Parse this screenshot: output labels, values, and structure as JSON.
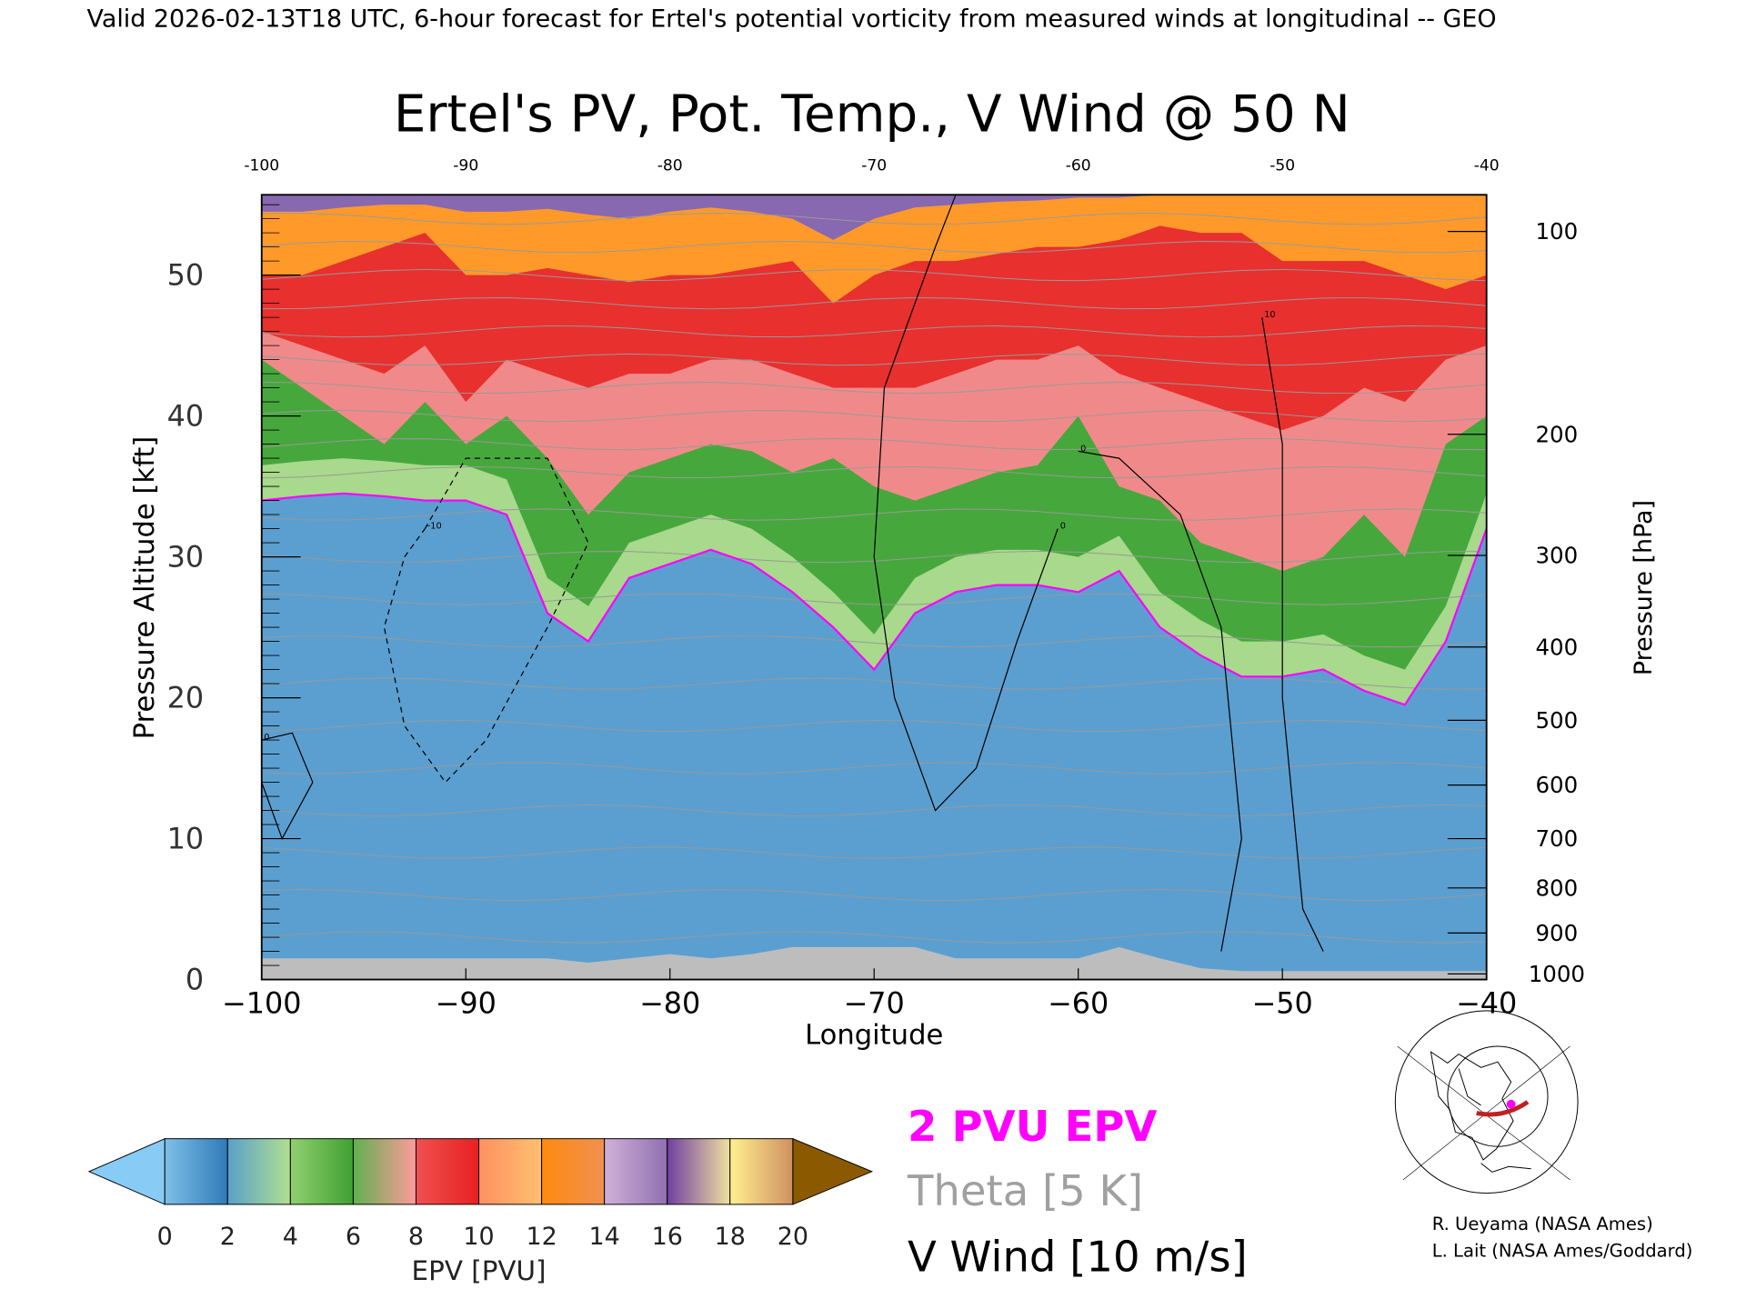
{
  "header": "Valid 2026-02-13T18 UTC, 6-hour forecast for Ertel's potential vorticity from measured winds at longitudinal -- GEO",
  "chart_data": {
    "type": "heatmap",
    "title": "Ertel's PV, Pot. Temp., V Wind @ 50 N",
    "xlabel": "Longitude",
    "ylabel": "Pressure Altitude [kft]",
    "y2label": "Pressure [hPa]",
    "xlim": [
      -100,
      -40
    ],
    "ylim": [
      0,
      55.7
    ],
    "xticks": [
      "-100",
      "-90",
      "-80",
      "-70",
      "-60",
      "-50",
      "-40"
    ],
    "xtick_values": [
      -100,
      -90,
      -80,
      -70,
      -60,
      -50,
      -40
    ],
    "yticks": [
      "0",
      "10",
      "20",
      "30",
      "40",
      "50"
    ],
    "ytick_values": [
      0,
      10,
      20,
      30,
      40,
      50
    ],
    "pressure_ticks": [
      {
        "label": "100",
        "kft": 53.1
      },
      {
        "label": "200",
        "kft": 38.7
      },
      {
        "label": "300",
        "kft": 30.1
      },
      {
        "label": "400",
        "kft": 23.6
      },
      {
        "label": "500",
        "kft": 18.4
      },
      {
        "label": "600",
        "kft": 13.8
      },
      {
        "label": "700",
        "kft": 10
      },
      {
        "label": "800",
        "kft": 6.5
      },
      {
        "label": "900",
        "kft": 3.3
      },
      {
        "label": "1000",
        "kft": 0.4
      }
    ],
    "longitudes": [
      -100,
      -98,
      -96,
      -94,
      -92,
      -90,
      -88,
      -86,
      -84,
      -82,
      -80,
      -78,
      -76,
      -74,
      -72,
      -70,
      -68,
      -66,
      -64,
      -62,
      -60,
      -58,
      -56,
      -54,
      -52,
      -50,
      -48,
      -46,
      -44,
      -42,
      -40
    ],
    "epv_level_heights_kft": [
      {
        "pvu": 2,
        "color": "#5b9fd0",
        "heights": [
          34,
          34.3,
          34.5,
          34.3,
          34,
          34,
          33,
          26,
          24,
          28.5,
          29.5,
          30.5,
          29.5,
          27.5,
          25,
          22,
          26,
          27.5,
          28,
          28,
          27.5,
          29,
          25,
          23,
          21.5,
          21.5,
          22,
          20.5,
          19.5,
          24,
          32
        ]
      },
      {
        "pvu": 4,
        "color": "#a8d98c",
        "heights": [
          36.5,
          36.8,
          37,
          36.8,
          36.5,
          36.5,
          35.5,
          28.5,
          26.5,
          31,
          32,
          33,
          32,
          30,
          27.5,
          24.5,
          28.5,
          30,
          30.5,
          30.5,
          30,
          31.5,
          27.5,
          25.5,
          24,
          24,
          24.5,
          23,
          22,
          26.5,
          34.5
        ]
      },
      {
        "pvu": 6,
        "color": "#46a83c",
        "heights": [
          44,
          42,
          40,
          38,
          41,
          38,
          40,
          37,
          33,
          36,
          37,
          38,
          37.5,
          36,
          37,
          35,
          34,
          35,
          36,
          36.5,
          40,
          35,
          34,
          31,
          30,
          29,
          30,
          33,
          30,
          38,
          40
        ]
      },
      {
        "pvu": 8,
        "color": "#f08a8a",
        "heights": [
          46,
          45,
          44,
          43,
          45,
          41,
          44,
          43,
          42,
          43,
          43,
          44,
          44,
          43,
          42,
          42,
          42,
          43,
          44,
          44,
          45,
          43,
          42,
          41,
          40,
          39,
          40,
          42,
          41,
          44,
          45
        ]
      },
      {
        "pvu": 10,
        "color": "#e8302e",
        "heights": [
          50,
          50,
          51,
          52,
          53,
          50,
          50,
          50.5,
          50,
          49.5,
          50,
          50,
          50.5,
          51,
          48,
          50,
          51,
          51,
          51.5,
          52,
          52,
          52.5,
          53.5,
          53,
          53,
          51,
          51,
          51,
          50,
          49,
          50
        ]
      },
      {
        "pvu": 12,
        "color": "#ff9a2a",
        "heights": [
          54.5,
          54.5,
          54.8,
          55,
          55,
          54.5,
          54.5,
          54.7,
          54.3,
          54,
          54.5,
          54.8,
          54.5,
          54,
          52.5,
          54,
          54.8,
          55,
          55.2,
          55.3,
          55.5,
          55.5,
          55.7,
          55.7,
          55.7,
          55.7,
          55.7,
          55.7,
          55.7,
          55.7,
          55.7
        ]
      },
      {
        "pvu": 16,
        "color": "#8868b0",
        "heights": [
          55.7,
          55.7,
          55.7,
          55.7,
          55.7,
          55.7,
          55.7,
          55.7,
          55.7,
          55.7,
          55.7,
          55.7,
          55.7,
          55.7,
          55.7,
          55.7,
          55.7,
          55.7,
          55.7,
          55.7,
          55.7,
          55.7,
          55.7,
          55.7,
          55.7,
          55.7,
          55.7,
          55.7,
          55.7,
          55.7,
          55.7
        ]
      }
    ],
    "ground_kft": [
      1.5,
      1.5,
      1.5,
      1.5,
      1.5,
      1.5,
      1.5,
      1.5,
      1.2,
      1.5,
      1.8,
      1.5,
      1.8,
      2.3,
      2.3,
      2.3,
      2.3,
      1.5,
      1.5,
      1.5,
      1.5,
      2.3,
      1.5,
      0.8,
      0.6,
      0.6,
      0.6,
      0.6,
      0.6,
      0.6,
      0.6
    ],
    "theta_levels_kft": [
      3,
      6,
      9,
      12,
      15,
      18,
      21,
      24,
      27,
      30,
      33,
      36,
      38,
      40,
      42,
      44,
      46,
      48,
      50,
      52,
      54
    ],
    "wind_contours": [
      {
        "label": "0",
        "points": [
          [
            -61,
            32
          ],
          [
            -63,
            24
          ],
          [
            -65,
            15
          ],
          [
            -67,
            12
          ],
          [
            -69,
            20
          ],
          [
            -70,
            30
          ],
          [
            -69.5,
            42
          ],
          [
            -67,
            52
          ],
          [
            -66,
            55.7
          ]
        ]
      },
      {
        "label": "0",
        "points": [
          [
            -60,
            37.5
          ],
          [
            -58,
            37
          ],
          [
            -55,
            33
          ],
          [
            -53,
            25
          ],
          [
            -52,
            10
          ],
          [
            -53,
            2
          ]
        ]
      },
      {
        "label": "10",
        "points": [
          [
            -51,
            47
          ],
          [
            -50,
            38
          ],
          [
            -50,
            20
          ],
          [
            -49,
            5
          ],
          [
            -48,
            2
          ]
        ]
      },
      {
        "label": "-10",
        "points": [
          [
            -92,
            32
          ],
          [
            -90,
            37
          ],
          [
            -86,
            37
          ],
          [
            -84,
            31
          ],
          [
            -86,
            25
          ],
          [
            -89,
            17
          ],
          [
            -91,
            14
          ],
          [
            -93,
            18
          ],
          [
            -94,
            25
          ],
          [
            -93,
            30
          ],
          [
            -92,
            32
          ]
        ]
      },
      {
        "label": "0",
        "points": [
          [
            -100,
            17
          ],
          [
            -98.5,
            17.5
          ],
          [
            -97.5,
            14
          ],
          [
            -99,
            10
          ],
          [
            -100,
            14
          ]
        ]
      }
    ],
    "colorbar": {
      "label": "EPV [PVU]",
      "ticks": [
        "0",
        "2",
        "4",
        "6",
        "8",
        "10",
        "12",
        "14",
        "16",
        "18",
        "20"
      ],
      "segments": [
        [
          "#7fbfe8",
          "#2f7ab8"
        ],
        [
          "#5aa0c8",
          "#b0e090"
        ],
        [
          "#90d070",
          "#40a030"
        ],
        [
          "#60b050",
          "#ff9a9a"
        ],
        [
          "#f05050",
          "#e82020"
        ],
        [
          "#ff9060",
          "#ffc070"
        ],
        [
          "#ff8a10",
          "#f09050"
        ],
        [
          "#d0b0d8",
          "#9070b0"
        ],
        [
          "#7040a0",
          "#f0e0a0"
        ],
        [
          "#fff090",
          "#d09060"
        ]
      ],
      "under_color": "#88ccf5",
      "over_color": "#8b5a00"
    }
  },
  "legend": {
    "pv_line": "2 PVU EPV",
    "theta": "Theta [5 K]",
    "wind": "V Wind [10 m/s]",
    "pv_color": "#ff00ff",
    "theta_color": "#a0a0a0",
    "wind_color": "#000000"
  },
  "credits": {
    "line1": "R. Ueyama (NASA Ames)",
    "line2": "L. Lait (NASA Ames/Goddard)"
  }
}
